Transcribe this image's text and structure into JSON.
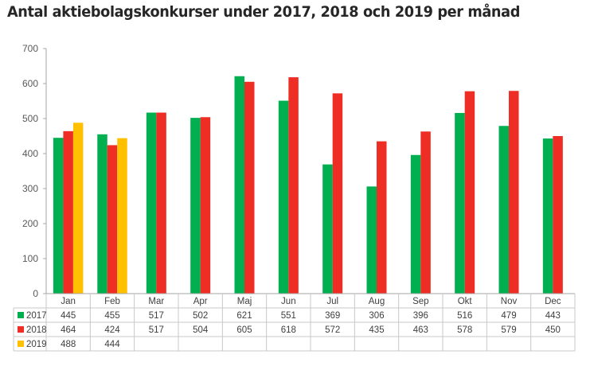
{
  "chart_data": {
    "type": "bar",
    "title": "Antal aktiebolagskonkurser under 2017, 2018 och 2019 per månad",
    "xlabel": "",
    "ylabel": "",
    "ylim": [
      0,
      700
    ],
    "yticks": [
      0,
      100,
      200,
      300,
      400,
      500,
      600,
      700
    ],
    "ytick_labels": [
      "0",
      "100",
      "200",
      "300",
      "400",
      "500",
      "600",
      "700"
    ],
    "grid": false,
    "legend": "data-table",
    "categories": [
      "Jan",
      "Feb",
      "Mar",
      "Apr",
      "Maj",
      "Jun",
      "Jul",
      "Aug",
      "Sep",
      "Okt",
      "Nov",
      "Dec"
    ],
    "series": [
      {
        "name": "2017",
        "color": "#00b050",
        "values": [
          445,
          455,
          517,
          502,
          621,
          551,
          369,
          306,
          396,
          516,
          479,
          443
        ]
      },
      {
        "name": "2018",
        "color": "#ee2e24",
        "values": [
          464,
          424,
          517,
          504,
          605,
          618,
          572,
          435,
          463,
          578,
          579,
          450
        ]
      },
      {
        "name": "2019",
        "color": "#ffc000",
        "values": [
          488,
          444,
          null,
          null,
          null,
          null,
          null,
          null,
          null,
          null,
          null,
          null
        ]
      }
    ],
    "table_labels": {
      "2017": [
        "445",
        "455",
        "517",
        "502",
        "621",
        "551",
        "369",
        "306",
        "396",
        "516",
        "479",
        "443"
      ],
      "2018": [
        "464",
        "424",
        "517",
        "504",
        "605",
        "618",
        "572",
        "435",
        "463",
        "578",
        "579",
        "450"
      ],
      "2019": [
        "488",
        "444",
        "",
        "",
        "",
        "",
        "",
        "",
        "",
        "",
        "",
        ""
      ]
    }
  }
}
